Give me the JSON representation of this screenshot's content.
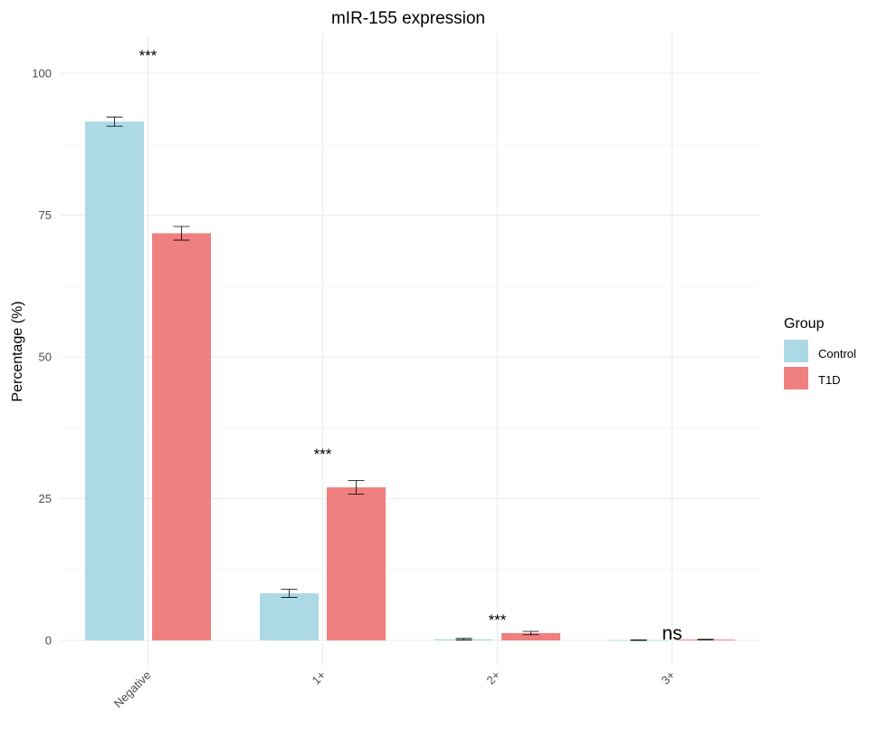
{
  "chart_data": {
    "type": "bar",
    "title": "mIR-155 expression",
    "xlabel": "",
    "ylabel": "Percentage (%)",
    "ylim": [
      -4.5,
      107
    ],
    "yticks": [
      0,
      25,
      50,
      75,
      100
    ],
    "grid": true,
    "categories": [
      "Negative",
      "1+",
      "2+",
      "3+"
    ],
    "series": [
      {
        "name": "Control",
        "color": "#ADD8E6",
        "values": [
          91.5,
          8.3,
          0.2,
          0.05
        ],
        "errors": [
          0.8,
          0.7,
          0.15,
          0.05
        ]
      },
      {
        "name": "T1D",
        "color": "#F08080",
        "values": [
          71.8,
          27.0,
          1.3,
          0.15
        ],
        "errors": [
          1.2,
          1.2,
          0.3,
          0.05
        ]
      }
    ],
    "annotations": [
      "***",
      "***",
      "***",
      "ns"
    ],
    "legend": {
      "title": "Group",
      "position": "right"
    },
    "x_tick_rotation_deg": 45
  }
}
